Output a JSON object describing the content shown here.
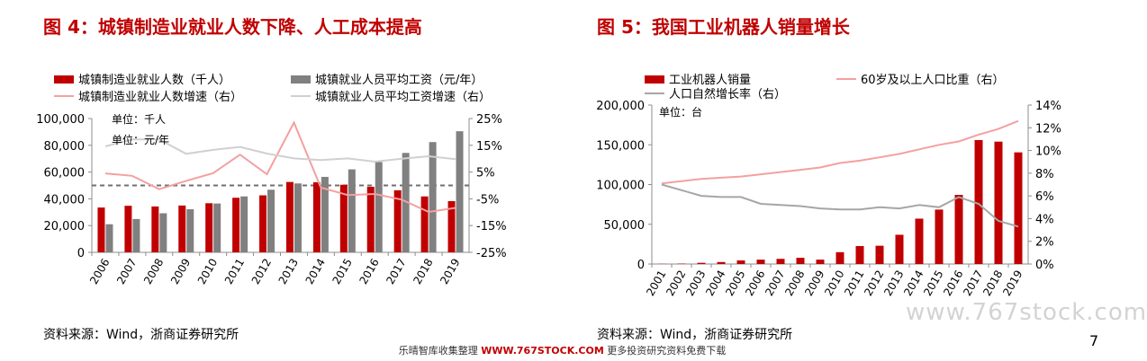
{
  "page": {
    "watermark": "www.767stock.com",
    "page_number": "7",
    "footer": {
      "prefix": "乐晴智库收集整理",
      "site": "WWW.767STOCK.COM",
      "suffix": "更多投资研究资料免费下载"
    }
  },
  "colors": {
    "dark_red": "#c00000",
    "gray_bar": "#808080",
    "pink": "#f4a0a0",
    "light_gray": "#d0d0d0",
    "mid_gray": "#a6a6a6",
    "dashed": "#707070"
  },
  "figures": {
    "left": {
      "title": "图 4：城镇制造业就业人数下降、人工成本提高",
      "source": "资料来源：Wind，浙商证券研究所"
    },
    "right": {
      "title": "图 5：我国工业机器人销量增长",
      "source": "资料来源：Wind，浙商证券研究所"
    }
  },
  "chart_data": [
    {
      "type": "bar",
      "categories": [
        "2006",
        "2007",
        "2008",
        "2009",
        "2010",
        "2011",
        "2012",
        "2013",
        "2014",
        "2015",
        "2016",
        "2017",
        "2018",
        "2019"
      ],
      "ylim": [
        0,
        100000
      ],
      "yticks": [
        "0",
        "20,000",
        "40,000",
        "60,000",
        "80,000",
        "100,000"
      ],
      "y2lim": [
        -25,
        25
      ],
      "y2ticks": [
        "-25%",
        "-15%",
        "-5%",
        "5%",
        "15%",
        "25%"
      ],
      "annotations": [
        "单位：千人",
        "单位：元/年"
      ],
      "legend_placement": "top",
      "reference_line_y2": 0,
      "series": [
        {
          "name": "城镇制造业就业人数（千人）",
          "kind": "bar",
          "axis": "left",
          "color": "#c00000",
          "values": [
            33500,
            34800,
            34300,
            35000,
            36700,
            40800,
            42600,
            52600,
            52400,
            50500,
            49000,
            46400,
            41800,
            38300
          ]
        },
        {
          "name": "城镇就业人员平均工资（元/年）",
          "kind": "bar",
          "axis": "left",
          "color": "#808080",
          "values": [
            21000,
            24900,
            29200,
            32200,
            36500,
            41800,
            46800,
            51500,
            56400,
            62000,
            67500,
            74300,
            82400,
            90500
          ]
        },
        {
          "name": "城镇制造业就业人数增速（右）",
          "kind": "line",
          "axis": "right",
          "color": "#f4a0a0",
          "values": [
            4.5,
            3.6,
            -1.4,
            1.7,
            4.6,
            11.5,
            4.2,
            23.5,
            -0.8,
            -3.6,
            -3.2,
            -5.3,
            -9.9,
            -8.4
          ]
        },
        {
          "name": "城镇就业人员平均工资增速（右）",
          "kind": "line",
          "axis": "right",
          "color": "#d0d0d0",
          "values": [
            14.6,
            17.2,
            17.2,
            11.8,
            13.3,
            14.4,
            11.9,
            10.1,
            9.5,
            10.1,
            8.9,
            10.0,
            10.9,
            9.8
          ]
        }
      ]
    },
    {
      "type": "bar",
      "categories": [
        "2001",
        "2002",
        "2003",
        "2004",
        "2005",
        "2006",
        "2007",
        "2008",
        "2009",
        "2010",
        "2011",
        "2012",
        "2013",
        "2014",
        "2015",
        "2016",
        "2017",
        "2018",
        "2019"
      ],
      "ylim": [
        0,
        200000
      ],
      "yticks": [
        "0",
        "50,000",
        "100,000",
        "150,000",
        "200,000"
      ],
      "y2lim": [
        0,
        14
      ],
      "y2ticks": [
        "0%",
        "2%",
        "4%",
        "6%",
        "8%",
        "10%",
        "12%",
        "14%"
      ],
      "annotations": [
        "单位：台"
      ],
      "legend_placement": "top",
      "series": [
        {
          "name": "工业机器人销量",
          "kind": "bar",
          "axis": "left",
          "color": "#c00000",
          "values": [
            200,
            500,
            1500,
            2500,
            4500,
            5500,
            6500,
            7800,
            5500,
            14900,
            22600,
            23000,
            36800,
            57100,
            68500,
            87000,
            156000,
            154000,
            140500
          ]
        },
        {
          "name": "60岁及以上人口比重（右）",
          "kind": "line",
          "axis": "right",
          "color": "#f4a0a0",
          "values": [
            7.1,
            7.3,
            7.5,
            7.6,
            7.7,
            7.9,
            8.1,
            8.3,
            8.5,
            8.9,
            9.1,
            9.4,
            9.7,
            10.1,
            10.5,
            10.8,
            11.4,
            11.9,
            12.6
          ]
        },
        {
          "name": "人口自然增长率（右）",
          "kind": "line",
          "axis": "right",
          "color": "#a6a6a6",
          "values": [
            7.0,
            6.5,
            6.0,
            5.9,
            5.9,
            5.3,
            5.2,
            5.1,
            4.9,
            4.8,
            4.8,
            5.0,
            4.9,
            5.2,
            5.0,
            5.9,
            5.3,
            3.8,
            3.3
          ]
        }
      ]
    }
  ]
}
